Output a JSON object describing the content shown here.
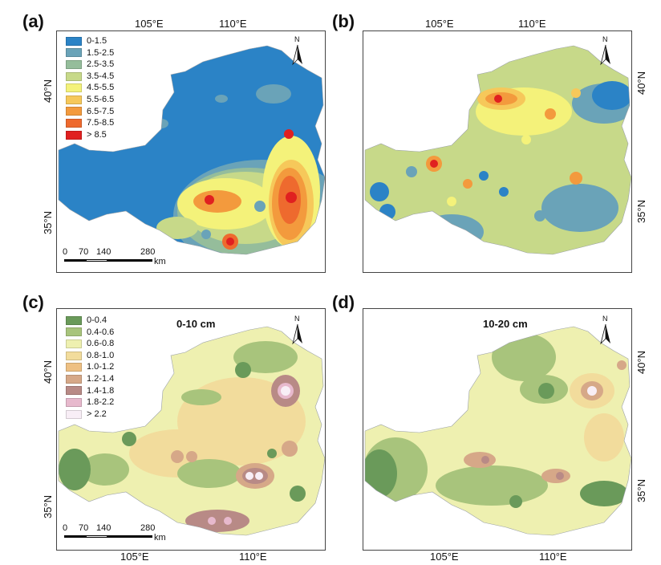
{
  "panels": {
    "a": {
      "label": "(a)",
      "lon_top": [
        "105°E",
        "110°E"
      ],
      "lat": [
        "40°N",
        "35°N"
      ]
    },
    "b": {
      "label": "(b)",
      "lon_top": [
        "105°E",
        "110°E"
      ],
      "lat": [
        "40°N",
        "35°N"
      ]
    },
    "c": {
      "label": "(c)",
      "title": "0-10 cm",
      "lon_bottom": [
        "105°E",
        "110°E"
      ],
      "lat": [
        "40°N",
        "35°N"
      ]
    },
    "d": {
      "label": "(d)",
      "title": "10-20 cm",
      "lon_bottom": [
        "105°E",
        "110°E"
      ],
      "lat": [
        "40°N",
        "35°N"
      ]
    }
  },
  "north_label": "N",
  "scale_bar": {
    "ticks": [
      "0",
      "70",
      "140",
      "280"
    ],
    "unit": "km"
  },
  "legend_top": {
    "items": [
      {
        "label": "0-1.5",
        "color": "#2b83c6"
      },
      {
        "label": "1.5-2.5",
        "color": "#6aa3b8"
      },
      {
        "label": "2.5-3.5",
        "color": "#95bd9b"
      },
      {
        "label": "3.5-4.5",
        "color": "#c7d989"
      },
      {
        "label": "4.5-5.5",
        "color": "#f4f27a"
      },
      {
        "label": "5.5-6.5",
        "color": "#f6c85a"
      },
      {
        "label": "6.5-7.5",
        "color": "#f39a3d"
      },
      {
        "label": "7.5-8.5",
        "color": "#ee6a2e"
      },
      {
        "label": "> 8.5",
        "color": "#e02020"
      }
    ]
  },
  "legend_bottom": {
    "items": [
      {
        "label": "0-0.4",
        "color": "#6a9a5a"
      },
      {
        "label": "0.4-0.6",
        "color": "#a8c47c"
      },
      {
        "label": "0.6-0.8",
        "color": "#eef0b0"
      },
      {
        "label": "0.8-1.0",
        "color": "#f2dc9c"
      },
      {
        "label": "1.0-1.2",
        "color": "#eec083"
      },
      {
        "label": "1.2-1.4",
        "color": "#d6a888"
      },
      {
        "label": "1.4-1.8",
        "color": "#b88a86"
      },
      {
        "label": "1.8-2.2",
        "color": "#e7b9cd"
      },
      {
        "label": "> 2.2",
        "color": "#f8eef6"
      }
    ]
  }
}
